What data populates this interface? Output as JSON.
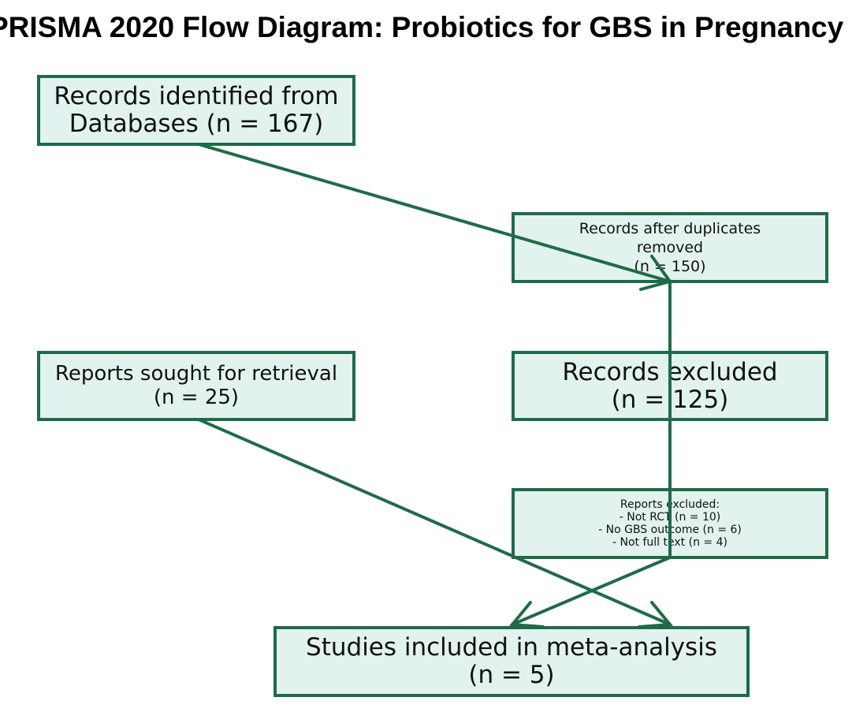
{
  "diagram": {
    "title": "PRISMA 2020 Flow Diagram: Probiotics for GBS in Pregnancy",
    "boxes": {
      "identified": "Records identified from\nDatabases (n = 167)",
      "after_duplicates": "Records after duplicates\nremoved\n(n = 150)",
      "sought": "Reports sought for retrieval\n(n = 25)",
      "excluded": "Records excluded\n(n = 125)",
      "reports_excluded": "Reports excluded:\n- Not RCT (n = 10)\n- No GBS outcome (n = 6)\n- Not full text (n = 4)",
      "included": "Studies included in meta-analysis\n(n = 5)"
    },
    "colors": {
      "box_fill": "#e2f3ef",
      "box_border": "#1f6b48",
      "arrow": "#1f6b48"
    }
  }
}
